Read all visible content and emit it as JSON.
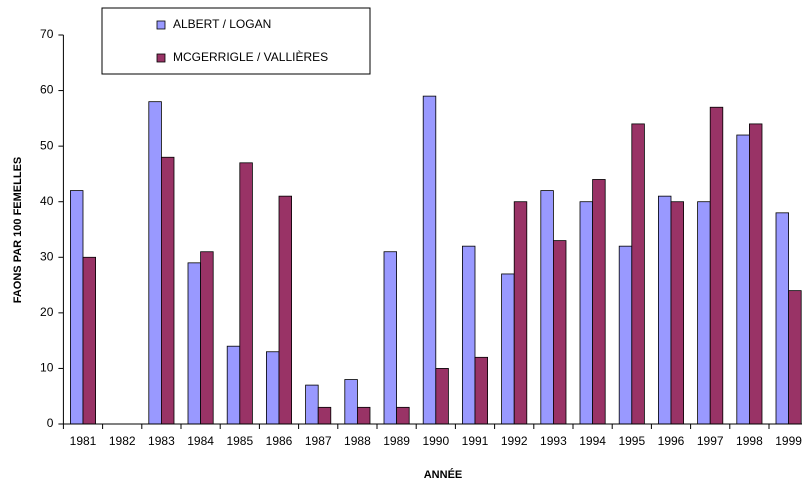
{
  "chart_data": {
    "type": "bar",
    "x_label": "ANNÉE",
    "y_label": "FAONS PAR 100 FEMELLES",
    "categories": [
      "1981",
      "1982",
      "1983",
      "1984",
      "1985",
      "1986",
      "1987",
      "1988",
      "1989",
      "1990",
      "1991",
      "1992",
      "1993",
      "1994",
      "1995",
      "1996",
      "1997",
      "1998",
      "1999"
    ],
    "series": [
      {
        "name": "ALBERT / LOGAN",
        "color": "#9999ff",
        "values": [
          42,
          null,
          58,
          29,
          14,
          13,
          7,
          8,
          31,
          59,
          32,
          27,
          42,
          40,
          32,
          41,
          40,
          52,
          38
        ]
      },
      {
        "name": "MCGERRIGLE / VALLIÈRES",
        "color": "#993366",
        "values": [
          30,
          null,
          48,
          31,
          47,
          41,
          3,
          3,
          3,
          10,
          12,
          40,
          33,
          44,
          54,
          40,
          57,
          54,
          24
        ]
      }
    ],
    "ylim": [
      0,
      70
    ],
    "yticks": [
      0,
      10,
      20,
      30,
      40,
      50,
      60,
      70
    ],
    "grid": false
  }
}
